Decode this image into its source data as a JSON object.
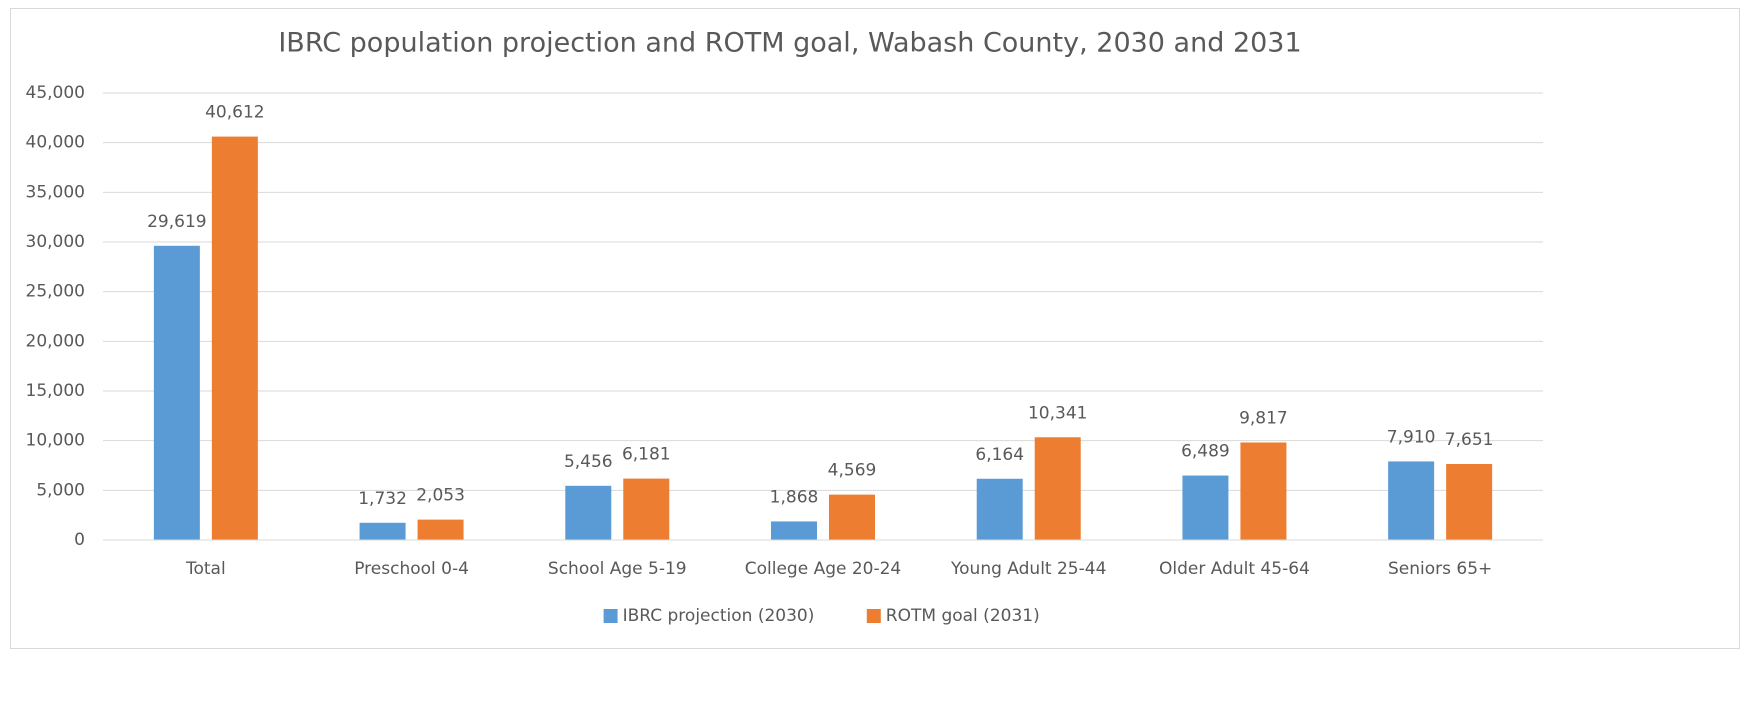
{
  "chart_data": {
    "type": "bar",
    "title": "IBRC population projection and ROTM goal, Wabash County, 2030 and 2031",
    "categories": [
      "Total",
      "Preschool 0-4",
      "School Age 5-19",
      "College Age 20-24",
      "Young Adult 25-44",
      "Older Adult 45-64",
      "Seniors 65+"
    ],
    "series": [
      {
        "name": "IBRC projection (2030)",
        "color": "#5b9bd5",
        "values": [
          29619,
          1732,
          5456,
          1868,
          6164,
          6489,
          7910
        ],
        "value_labels": [
          "29,619",
          "1,732",
          "5,456",
          "1,868",
          "6,164",
          "6,489",
          "7,910"
        ]
      },
      {
        "name": "ROTM goal (2031)",
        "color": "#ed7d31",
        "values": [
          40612,
          2053,
          6181,
          4569,
          10341,
          9817,
          7651
        ],
        "value_labels": [
          "40,612",
          "2,053",
          "6,181",
          "4,569",
          "10,341",
          "9,817",
          "7,651"
        ]
      }
    ],
    "ylim": [
      0,
      45000
    ],
    "yticks": [
      0,
      {
        "value": 5000,
        "label": "5,000"
      },
      {
        "value": 10000,
        "label": "10,000"
      },
      {
        "value": 15000,
        "label": "15,000"
      },
      {
        "value": 20000,
        "label": "20,000"
      },
      {
        "value": 25000,
        "label": "25,000"
      },
      {
        "value": 30000,
        "label": "30,000"
      },
      {
        "value": 35000,
        "label": "35,000"
      },
      {
        "value": 40000,
        "label": "40,000"
      },
      {
        "value": 45000,
        "label": "45,000"
      }
    ],
    "grid": true,
    "legend": "bottom"
  }
}
